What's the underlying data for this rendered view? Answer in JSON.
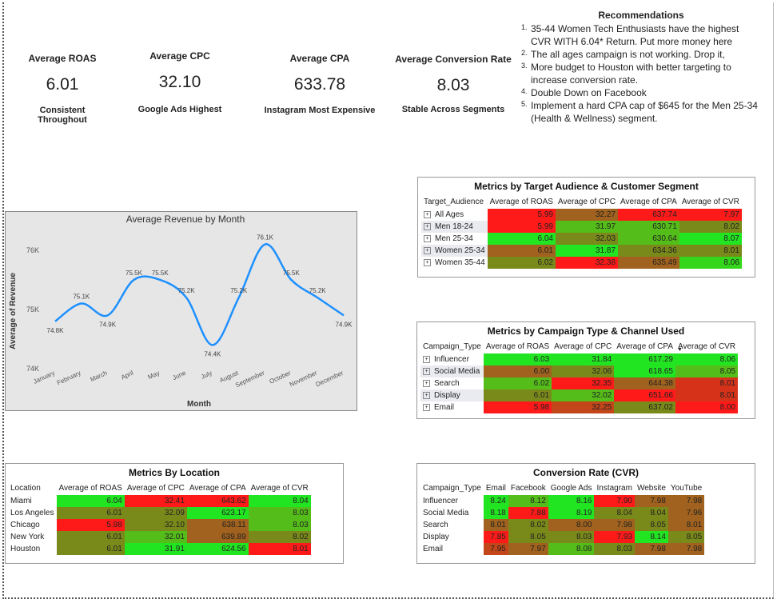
{
  "kpis": [
    {
      "title": "Average ROAS",
      "value": "6.01",
      "subtitle": "Consistent Throughout"
    },
    {
      "title": "Average CPC",
      "value": "32.10",
      "subtitle": "Google Ads Highest"
    },
    {
      "title": "Average CPA",
      "value": "633.78",
      "subtitle": "Instagram Most Expensive"
    },
    {
      "title": "Average Conversion Rate",
      "value": "8.03",
      "subtitle": "Stable Across Segments"
    }
  ],
  "recommendations": {
    "title": "Recommendations",
    "items": [
      {
        "num": "1.",
        "text": "35-44 Women Tech Enthusiasts have the highest CVR WITH 6.04* Return. Put more money here"
      },
      {
        "num": "2.",
        "text": "The all ages campaign is not working. Drop it,"
      },
      {
        "num": "3.",
        "text": "More budget to Houston with better targeting to increase conversion rate."
      },
      {
        "num": "4.",
        "text": "Double Down on Facebook"
      },
      {
        "num": "5.",
        "text": " Implement a hard CPA cap of $645 for the Men 25-34 (Health & Wellness) segment."
      }
    ]
  },
  "colors": {
    "red": "#ff1a1a",
    "green": "#22e522",
    "olive": "#7a8a1a",
    "brown": "#a0621e",
    "line": "#1e90ff",
    "chart_bg": "#e6e6e6"
  },
  "audience_table": {
    "title": "Metrics by Target Audience & Customer Segment",
    "headers": [
      "Target_Audience",
      "Average of ROAS",
      "Average of CPC",
      "Average of CPA",
      "Average of CVR"
    ],
    "rows": [
      {
        "label": "All Ages",
        "values": [
          "5.99",
          "32.27",
          "637.74",
          "7.97"
        ],
        "colors": [
          "#ff1a1a",
          "#a0621e",
          "#ff1a1a",
          "#ff1a1a"
        ]
      },
      {
        "label": "Men 18-24",
        "values": [
          "5.99",
          "31.97",
          "630.71",
          "8.02"
        ],
        "colors": [
          "#ff1a1a",
          "#55bd1a",
          "#55bd1a",
          "#7a8a1a"
        ]
      },
      {
        "label": "Men 25-34",
        "values": [
          "6.04",
          "32.03",
          "630.64",
          "8.07"
        ],
        "colors": [
          "#22e522",
          "#7a8a1a",
          "#55bd1a",
          "#22e522"
        ]
      },
      {
        "label": "Women 25-34",
        "values": [
          "6.01",
          "31.87",
          "634.36",
          "8.01"
        ],
        "colors": [
          "#a0621e",
          "#22e522",
          "#7a8a1a",
          "#7a8a1a"
        ]
      },
      {
        "label": "Women 35-44",
        "values": [
          "6.02",
          "32.38",
          "635.49",
          "8.06"
        ],
        "colors": [
          "#7a8a1a",
          "#ff1a1a",
          "#a0621e",
          "#33d61a"
        ]
      }
    ]
  },
  "campaign_table": {
    "title": "Metrics by Campaign Type & Channel Used",
    "headers": [
      "Campaign_Type",
      "Average of ROAS",
      "Average of CPC",
      "Average of CPA",
      "Average of CVR"
    ],
    "sort_marker": "▼",
    "rows": [
      {
        "label": "Influencer",
        "values": [
          "6.03",
          "31.84",
          "617.29",
          "8.06"
        ],
        "colors": [
          "#22e522",
          "#22e522",
          "#22e522",
          "#22e522"
        ]
      },
      {
        "label": "Social Media",
        "values": [
          "6.00",
          "32.06",
          "618.65",
          "8.05"
        ],
        "colors": [
          "#a0621e",
          "#7a8a1a",
          "#22e522",
          "#55bd1a"
        ]
      },
      {
        "label": "Search",
        "values": [
          "6.02",
          "32.35",
          "644.38",
          "8.01"
        ],
        "colors": [
          "#55bd1a",
          "#ff1a1a",
          "#a0621e",
          "#d6321a"
        ]
      },
      {
        "label": "Display",
        "values": [
          "6.01",
          "32.02",
          "651.66",
          "8.01"
        ],
        "colors": [
          "#7a8a1a",
          "#55bd1a",
          "#ff1a1a",
          "#d6321a"
        ]
      },
      {
        "label": "Email",
        "values": [
          "5.98",
          "32.25",
          "637.02",
          "8.00"
        ],
        "colors": [
          "#ff1a1a",
          "#c2461a",
          "#7a8a1a",
          "#ff1a1a"
        ]
      }
    ]
  },
  "location_table": {
    "title": "Metrics By Location",
    "headers": [
      "Location",
      "Average of ROAS",
      "Average of CPC",
      "Average of CPA",
      "Average of CVR"
    ],
    "rows": [
      {
        "label": "Miami",
        "values": [
          "6.04",
          "32.41",
          "643.62",
          "8.04"
        ],
        "colors": [
          "#22e522",
          "#ff1a1a",
          "#ff1a1a",
          "#22e522"
        ]
      },
      {
        "label": "Los Angeles",
        "values": [
          "6.01",
          "32.09",
          "623.17",
          "8.03"
        ],
        "colors": [
          "#7a8a1a",
          "#7a8a1a",
          "#22e522",
          "#55bd1a"
        ]
      },
      {
        "label": "Chicago",
        "values": [
          "5.98",
          "32.10",
          "638.11",
          "8.03"
        ],
        "colors": [
          "#ff1a1a",
          "#7a8a1a",
          "#a0621e",
          "#55bd1a"
        ]
      },
      {
        "label": "New York",
        "values": [
          "6.01",
          "32.01",
          "639.89",
          "8.02"
        ],
        "colors": [
          "#7a8a1a",
          "#55bd1a",
          "#a0621e",
          "#7a8a1a"
        ]
      },
      {
        "label": "Houston",
        "values": [
          "6.01",
          "31.91",
          "624.56",
          "8.01"
        ],
        "colors": [
          "#7a8a1a",
          "#22e522",
          "#22e522",
          "#ff1a1a"
        ]
      }
    ]
  },
  "cvr_table": {
    "title": "Conversion Rate (CVR)",
    "headers": [
      "Campaign_Type",
      "Email",
      "Facebook",
      "Google Ads",
      "Instagram",
      "Website",
      "YouTube"
    ],
    "rows": [
      {
        "label": "Influencer",
        "values": [
          "8.24",
          "8.12",
          "8.16",
          "7.90",
          "7.98",
          "7.98"
        ],
        "colors": [
          "#22e522",
          "#55bd1a",
          "#22e522",
          "#ff1a1a",
          "#a0621e",
          "#a0621e"
        ]
      },
      {
        "label": "Social Media",
        "values": [
          "8.18",
          "7.88",
          "8.19",
          "8.04",
          "8.04",
          "7.96"
        ],
        "colors": [
          "#22e522",
          "#ff1a1a",
          "#22e522",
          "#7a8a1a",
          "#7a8a1a",
          "#a0621e"
        ]
      },
      {
        "label": "Search",
        "values": [
          "8.01",
          "8.02",
          "8.00",
          "7.98",
          "8.05",
          "8.01"
        ],
        "colors": [
          "#a0621e",
          "#7a8a1a",
          "#a0621e",
          "#a0621e",
          "#7a8a1a",
          "#a0621e"
        ]
      },
      {
        "label": "Display",
        "values": [
          "7.85",
          "8.05",
          "8.03",
          "7.93",
          "8.14",
          "8.05"
        ],
        "colors": [
          "#ff1a1a",
          "#7a8a1a",
          "#7a8a1a",
          "#ff1a1a",
          "#22e522",
          "#7a8a1a"
        ]
      },
      {
        "label": "Email",
        "values": [
          "7.95",
          "7.97",
          "8.08",
          "8.03",
          "7.98",
          "7.98"
        ],
        "colors": [
          "#c2461a",
          "#a0621e",
          "#55bd1a",
          "#7a8a1a",
          "#a0621e",
          "#a0621e"
        ]
      }
    ]
  },
  "chart_data": {
    "type": "line",
    "title": "Average Revenue by Month",
    "xlabel": "Month",
    "ylabel": "Average of Revenue",
    "categories": [
      "January",
      "February",
      "March",
      "April",
      "May",
      "June",
      "July",
      "August",
      "September",
      "October",
      "November",
      "December"
    ],
    "values": [
      74800,
      75100,
      74900,
      75500,
      75500,
      75200,
      74400,
      75200,
      76100,
      75500,
      75200,
      74900
    ],
    "data_labels": [
      "74.8K",
      "75.1K",
      "74.9K",
      "75.5K",
      "75.5K",
      "75.2K",
      "74.4K",
      "75.2K",
      "76.1K",
      "75.5K",
      "75.2K",
      "74.9K"
    ],
    "y_ticks": [
      74000,
      75000,
      76000
    ],
    "y_tick_labels": [
      "74K",
      "75K",
      "76K"
    ],
    "ylim": [
      74000,
      76350
    ],
    "grid": false,
    "legend": "none"
  }
}
